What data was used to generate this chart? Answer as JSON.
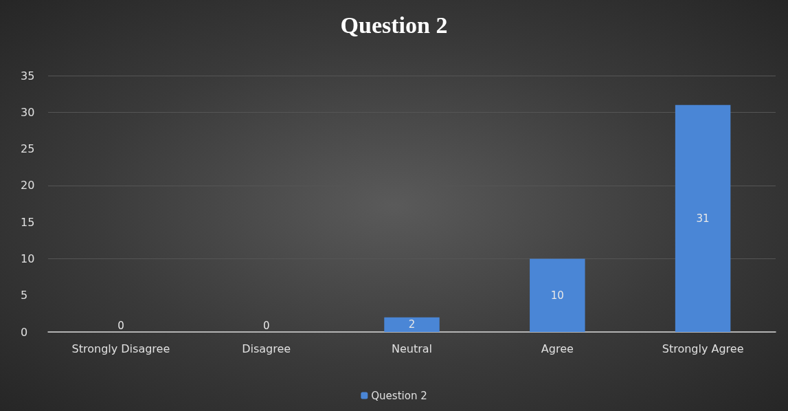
{
  "chart_data": {
    "type": "bar",
    "title": "Question 2",
    "categories": [
      "Strongly Disagree",
      "Disagree",
      "Neutral",
      "Agree",
      "Strongly Agree"
    ],
    "series": [
      {
        "name": "Question 2",
        "color": "#4a86d6",
        "values": [
          0,
          0,
          2,
          10,
          31
        ]
      }
    ],
    "ylim": [
      0,
      35
    ],
    "yticks": [
      0,
      5,
      10,
      15,
      20,
      25,
      30,
      35
    ],
    "grid": "y",
    "legend": "bottom",
    "data_labels": true
  }
}
